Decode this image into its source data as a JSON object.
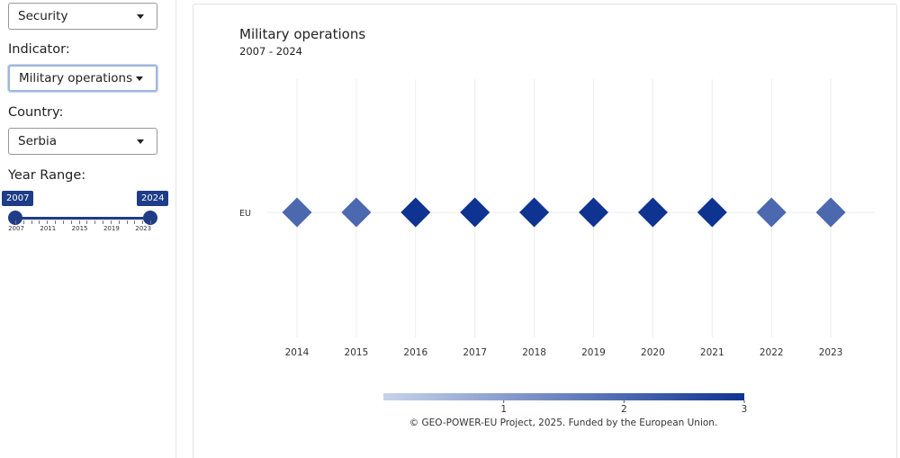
{
  "sidebar": {
    "category": {
      "value": "Security"
    },
    "indicator": {
      "label": "Indicator:",
      "value": "Military operations"
    },
    "country": {
      "label": "Country:",
      "value": "Serbia"
    },
    "year_range": {
      "label": "Year Range:",
      "from": "2007",
      "to": "2024",
      "min": 2007,
      "max": 2024,
      "tick_labels": [
        "2007",
        "2011",
        "2015",
        "2019",
        "2023"
      ]
    }
  },
  "chart": {
    "title": "Military operations",
    "subtitle": "2007 - 2024"
  },
  "chart_data": {
    "type": "scatter",
    "marker": "diamond",
    "y_categories": [
      "EU"
    ],
    "x": [
      "2014",
      "2015",
      "2016",
      "2017",
      "2018",
      "2019",
      "2020",
      "2021",
      "2022",
      "2023"
    ],
    "series": [
      {
        "y": "EU",
        "values": [
          2,
          2,
          3,
          3,
          3,
          3,
          3,
          3,
          2,
          2
        ]
      }
    ],
    "colorbar": {
      "min": 0,
      "max": 3,
      "tick_labels": [
        "1",
        "2",
        "3"
      ],
      "color_low": "#c6d3ea",
      "color_high": "#0f3391"
    },
    "grid": true
  },
  "footer": "© GEO-POWER-EU Project, 2025. Funded by the European Union.",
  "colors": {
    "accent": "#1f3c88"
  }
}
